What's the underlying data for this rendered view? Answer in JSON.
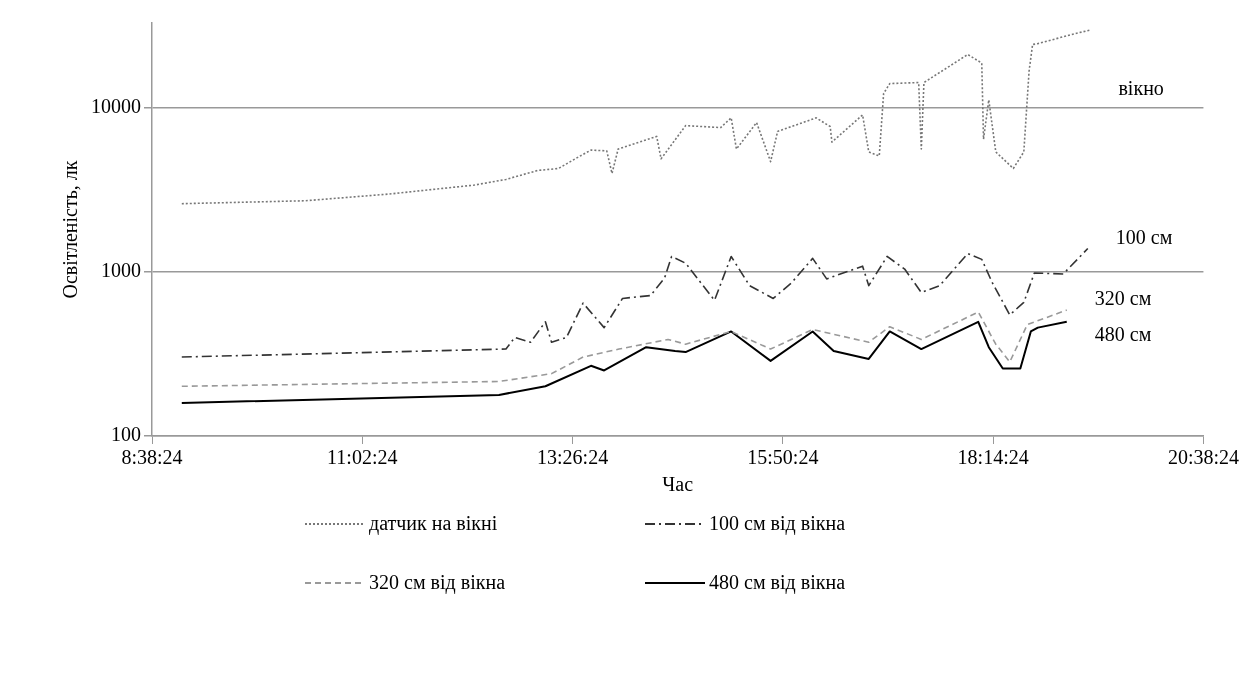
{
  "chart_data": {
    "type": "line",
    "xlabel": "Час",
    "ylabel": "Освітленість, лк",
    "log": "y",
    "grid": "y",
    "legend": "bottom",
    "marker": "none",
    "xlim": [
      8.64,
      20.64
    ],
    "xticks": [
      {
        "value": 8.64,
        "label": "8:38:24"
      },
      {
        "value": 11.04,
        "label": "11:02:24"
      },
      {
        "value": 13.44,
        "label": "13:26:24"
      },
      {
        "value": 15.84,
        "label": "15:50:24"
      },
      {
        "value": 18.24,
        "label": "18:14:24"
      },
      {
        "value": 20.64,
        "label": "20:38:24"
      }
    ],
    "ylim": [
      100,
      33000
    ],
    "yticks": [
      100,
      1000,
      10000
    ],
    "annotations": [
      "вікно",
      "100 см",
      "320 см",
      "480 см"
    ],
    "series": [
      {
        "name": "датчик на вікні",
        "color": "#777777",
        "line_style": "dotted",
        "x": [
          8.98,
          10.39,
          11.35,
          12.32,
          12.68,
          13.04,
          13.28,
          13.53,
          13.65,
          13.83,
          13.89,
          13.96,
          14.4,
          14.45,
          14.73,
          15.13,
          15.25,
          15.31,
          15.54,
          15.7,
          15.78,
          16.22,
          16.38,
          16.4,
          16.75,
          16.82,
          16.94,
          16.99,
          17.06,
          17.39,
          17.42,
          17.45,
          17.95,
          18.11,
          18.13,
          18.19,
          18.27,
          18.47,
          18.59,
          18.65,
          18.69,
          18.75,
          19.16,
          19.35
        ],
        "values": [
          2610,
          2720,
          2990,
          3390,
          3670,
          4160,
          4280,
          5110,
          5540,
          5480,
          3990,
          5620,
          6710,
          4900,
          7810,
          7600,
          8710,
          5620,
          8150,
          4710,
          7200,
          8710,
          7710,
          6200,
          9080,
          5400,
          5100,
          12270,
          14100,
          14300,
          5620,
          14300,
          21200,
          18800,
          6460,
          11200,
          5400,
          4280,
          5400,
          16800,
          24400,
          24700,
          28300,
          29900
        ]
      },
      {
        "name": "100 см від вікна",
        "color": "#333333",
        "line_style": "dashdot",
        "x": [
          8.98,
          12.68,
          12.78,
          12.96,
          13.13,
          13.2,
          13.37,
          13.56,
          13.8,
          14.01,
          14.33,
          14.49,
          14.57,
          14.73,
          15.06,
          15.25,
          15.46,
          15.73,
          15.94,
          16.18,
          16.34,
          16.75,
          16.82,
          17.03,
          17.23,
          17.42,
          17.63,
          17.95,
          18.11,
          18.23,
          18.43,
          18.59,
          18.71,
          19.04,
          19.32
        ],
        "values": [
          303,
          339,
          399,
          373,
          497,
          373,
          399,
          646,
          458,
          690,
          719,
          920,
          1244,
          1132,
          672,
          1244,
          826,
          690,
          861,
          1211,
          908,
          1086,
          826,
          1244,
          1042,
          750,
          826,
          1297,
          1194,
          861,
          547,
          653,
          986,
          973,
          1390
        ]
      },
      {
        "name": "320 см від вікна",
        "color": "#999999",
        "line_style": "dashed",
        "x": [
          8.98,
          12.6,
          13.2,
          13.56,
          13.97,
          14.53,
          14.73,
          15.25,
          15.7,
          16.18,
          16.82,
          17.06,
          17.42,
          18.07,
          18.27,
          18.43,
          18.63,
          19.08
        ],
        "values": [
          201,
          215,
          240,
          303,
          339,
          388,
          363,
          434,
          339,
          446,
          373,
          464,
          388,
          570,
          363,
          283,
          478,
          586
        ]
      },
      {
        "name": "480 см від вікна",
        "color": "#000000",
        "line_style": "solid",
        "x": [
          8.98,
          12.6,
          13.13,
          13.65,
          13.8,
          14.28,
          14.61,
          14.73,
          15.25,
          15.7,
          16.18,
          16.42,
          16.82,
          17.06,
          17.42,
          18.07,
          18.19,
          18.35,
          18.55,
          18.67,
          18.75,
          19.08
        ],
        "values": [
          159,
          178,
          201,
          268,
          251,
          348,
          330,
          325,
          434,
          287,
          434,
          330,
          295,
          434,
          339,
          497,
          348,
          258,
          258,
          434,
          458,
          497
        ]
      }
    ]
  }
}
